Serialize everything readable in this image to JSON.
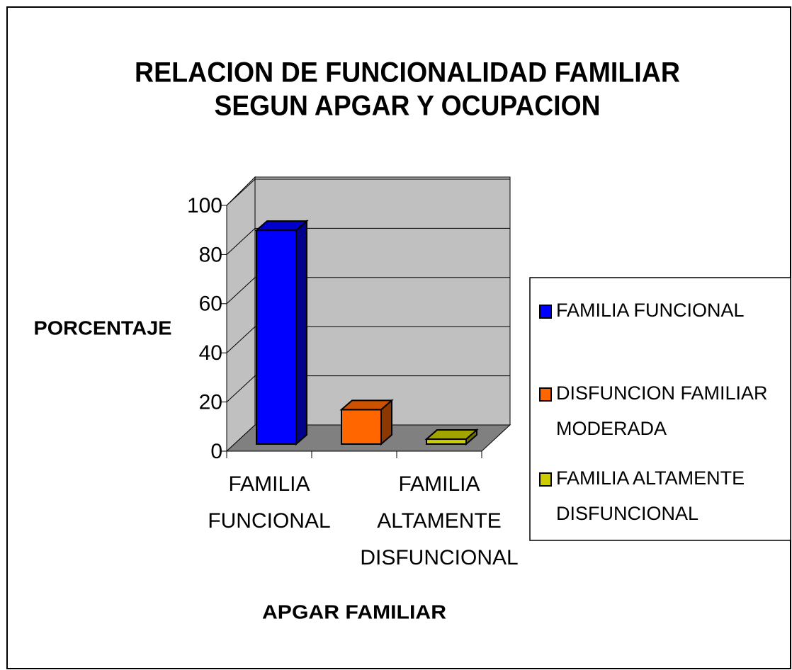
{
  "chart_data": {
    "type": "bar3d",
    "title": [
      "RELACION DE FUNCIONALIDAD FAMILIAR",
      "SEGUN APGAR Y OCUPACION"
    ],
    "y_label": "PORCENTAJE",
    "x_label": "APGAR FAMILIAR",
    "categories": [
      "FAMILIA FUNCIONAL",
      null,
      "FAMILIA ALTAMENTE DISFUNCIONAL"
    ],
    "values": [
      87,
      14,
      2
    ],
    "colors": [
      "#0000ff",
      "#ff6600",
      "#cccc00"
    ],
    "legend": [
      "FAMILIA FUNCIONAL",
      "DISFUNCION FAMILIAR MODERADA",
      "FAMILIA ALTAMENTE DISFUNCIONAL"
    ],
    "ylim": [
      0,
      100
    ],
    "yticks": [
      0,
      20,
      40,
      60,
      80,
      100
    ],
    "grid": true
  }
}
